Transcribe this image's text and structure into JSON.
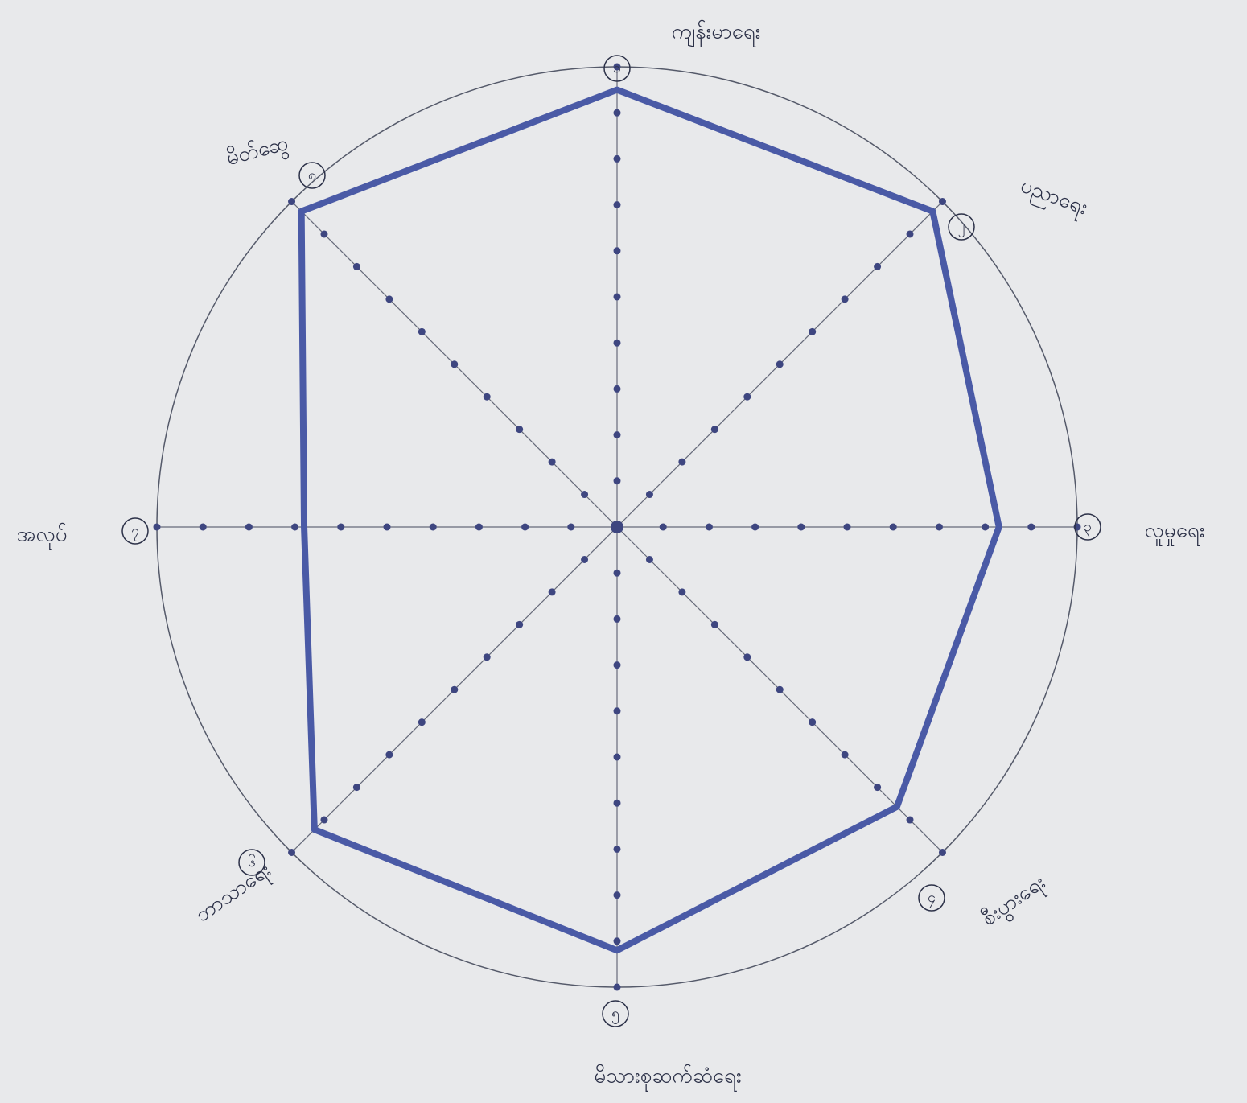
{
  "chart_data": {
    "type": "radar",
    "category_numbers": [
      "၁",
      "၂",
      "၃",
      "၄",
      "၅",
      "၆",
      "၇",
      "၈"
    ],
    "categories": [
      "ကျန်းမာရေး",
      "ပညာရေး",
      "လူမှုရေး",
      "စီးပွားရေး",
      "မိသားစုဆက်ဆံရေး",
      "ဘာသာရေး",
      "အလုပ်",
      "မိတ်ဆွေ"
    ],
    "values": [
      9.5,
      9.7,
      8.3,
      8.6,
      9.2,
      9.3,
      6.8,
      9.7
    ],
    "rlim": [
      0,
      10
    ],
    "rticks": [
      1,
      2,
      3,
      4,
      5,
      6,
      7,
      8,
      9,
      10
    ],
    "color": "#4a5aa6"
  }
}
